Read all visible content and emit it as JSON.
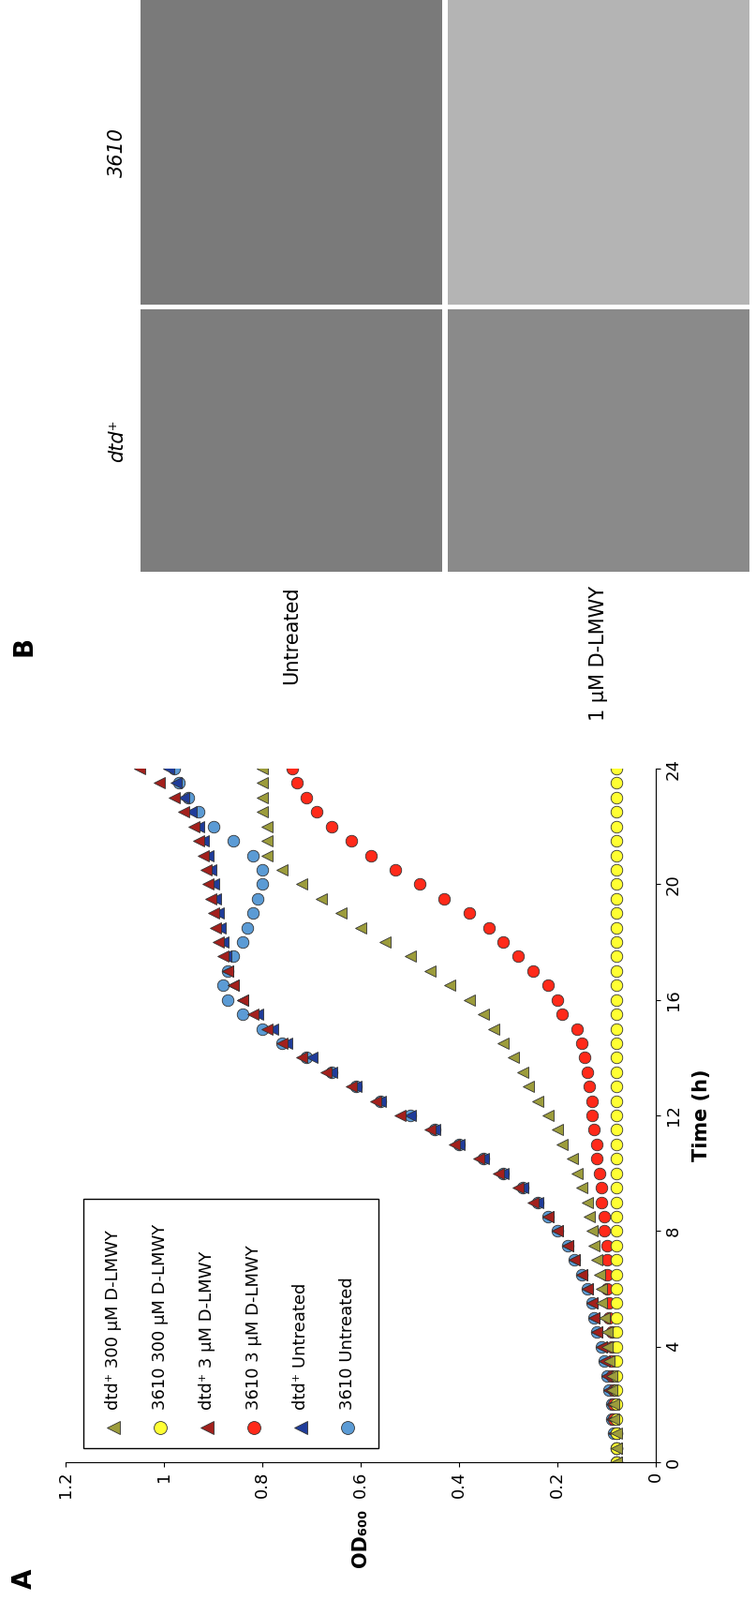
{
  "chart_data": {
    "type": "line",
    "xlabel": "Time (h)",
    "ylabel": "OD₆₀₀",
    "x": [
      0,
      0.5,
      1,
      1.5,
      2,
      2.5,
      3,
      3.5,
      4,
      4.5,
      5,
      5.5,
      6,
      6.5,
      7,
      7.5,
      8,
      8.5,
      9,
      9.5,
      10,
      10.5,
      11,
      11.5,
      12,
      12.5,
      13,
      13.5,
      14,
      14.5,
      15,
      15.5,
      16,
      16.5,
      17,
      17.5,
      18,
      18.5,
      19,
      19.5,
      20,
      20.5,
      21,
      21.5,
      22,
      22.5,
      23,
      23.5,
      24
    ],
    "xlim": [
      0,
      24
    ],
    "xticks": [
      0,
      4,
      8,
      12,
      16,
      20,
      24
    ],
    "ylim": [
      0,
      1.2
    ],
    "yticks": [
      0,
      0.2,
      0.4,
      0.6,
      0.8,
      1,
      1.2
    ],
    "grid": false,
    "legend": "upper left",
    "line_style": "none",
    "series": [
      {
        "name": "3610 Untreated",
        "color": "#5b9bd5",
        "marker": "circle",
        "values": [
          0.08,
          0.08,
          0.085,
          0.09,
          0.09,
          0.095,
          0.1,
          0.105,
          0.11,
          0.12,
          0.125,
          0.13,
          0.14,
          0.15,
          0.165,
          0.18,
          0.2,
          0.22,
          0.24,
          0.27,
          0.31,
          0.35,
          0.4,
          0.45,
          0.5,
          0.56,
          0.61,
          0.66,
          0.71,
          0.76,
          0.8,
          0.84,
          0.87,
          0.88,
          0.87,
          0.86,
          0.84,
          0.83,
          0.82,
          0.81,
          0.8,
          0.8,
          0.82,
          0.86,
          0.9,
          0.93,
          0.95,
          0.97,
          0.98
        ]
      },
      {
        "name": "dtd⁺ Untreated",
        "color": "#1f3c9a",
        "marker": "triangle",
        "values": [
          0.08,
          0.08,
          0.085,
          0.09,
          0.09,
          0.095,
          0.1,
          0.105,
          0.11,
          0.12,
          0.125,
          0.13,
          0.14,
          0.15,
          0.165,
          0.18,
          0.2,
          0.22,
          0.24,
          0.27,
          0.31,
          0.35,
          0.4,
          0.45,
          0.5,
          0.56,
          0.61,
          0.66,
          0.7,
          0.75,
          0.78,
          0.81,
          0.84,
          0.86,
          0.87,
          0.875,
          0.88,
          0.885,
          0.89,
          0.895,
          0.9,
          0.905,
          0.91,
          0.92,
          0.93,
          0.945,
          0.96,
          0.975,
          0.99
        ]
      },
      {
        "name": "3610 3 µM D-LMWY",
        "color": "#ff2a1a",
        "marker": "circle",
        "values": [
          0.08,
          0.08,
          0.08,
          0.085,
          0.085,
          0.085,
          0.09,
          0.09,
          0.09,
          0.09,
          0.095,
          0.095,
          0.1,
          0.1,
          0.1,
          0.1,
          0.105,
          0.105,
          0.11,
          0.11,
          0.115,
          0.12,
          0.12,
          0.125,
          0.13,
          0.13,
          0.135,
          0.14,
          0.145,
          0.15,
          0.16,
          0.19,
          0.2,
          0.22,
          0.25,
          0.28,
          0.31,
          0.34,
          0.38,
          0.43,
          0.48,
          0.53,
          0.58,
          0.62,
          0.66,
          0.69,
          0.71,
          0.73,
          0.74
        ]
      },
      {
        "name": "dtd⁺ 3 µM D-LMWY",
        "color": "#a3201c",
        "marker": "triangle",
        "values": [
          0.08,
          0.08,
          0.085,
          0.09,
          0.09,
          0.095,
          0.1,
          0.105,
          0.11,
          0.12,
          0.125,
          0.13,
          0.14,
          0.15,
          0.165,
          0.18,
          0.2,
          0.22,
          0.25,
          0.28,
          0.32,
          0.36,
          0.41,
          0.46,
          0.52,
          0.57,
          0.62,
          0.67,
          0.72,
          0.76,
          0.79,
          0.82,
          0.84,
          0.86,
          0.87,
          0.88,
          0.89,
          0.895,
          0.9,
          0.905,
          0.91,
          0.915,
          0.92,
          0.93,
          0.94,
          0.96,
          0.98,
          1.01,
          1.05
        ]
      },
      {
        "name": "3610 300 µM D-LMWY",
        "color": "#ffff33",
        "marker": "circle",
        "values": [
          0.08,
          0.08,
          0.08,
          0.08,
          0.08,
          0.08,
          0.08,
          0.08,
          0.08,
          0.08,
          0.08,
          0.08,
          0.08,
          0.08,
          0.08,
          0.08,
          0.08,
          0.08,
          0.08,
          0.08,
          0.08,
          0.08,
          0.08,
          0.08,
          0.08,
          0.08,
          0.08,
          0.08,
          0.08,
          0.08,
          0.08,
          0.08,
          0.08,
          0.08,
          0.08,
          0.08,
          0.08,
          0.08,
          0.08,
          0.08,
          0.08,
          0.08,
          0.08,
          0.08,
          0.08,
          0.08,
          0.08,
          0.08,
          0.08
        ]
      },
      {
        "name": "dtd⁺ 300 µM D-LMWY",
        "color": "#9c9c3c",
        "marker": "triangle",
        "values": [
          0.08,
          0.08,
          0.08,
          0.085,
          0.085,
          0.09,
          0.09,
          0.095,
          0.1,
          0.1,
          0.105,
          0.11,
          0.11,
          0.115,
          0.12,
          0.125,
          0.13,
          0.135,
          0.14,
          0.15,
          0.16,
          0.17,
          0.19,
          0.2,
          0.22,
          0.24,
          0.26,
          0.27,
          0.29,
          0.31,
          0.33,
          0.35,
          0.38,
          0.42,
          0.46,
          0.5,
          0.55,
          0.6,
          0.64,
          0.68,
          0.72,
          0.76,
          0.79,
          0.79,
          0.79,
          0.8,
          0.8,
          0.8,
          0.8
        ]
      }
    ]
  },
  "panel_labels": [
    "A",
    "B"
  ],
  "micrographs": {
    "columns": [
      "dtd⁺",
      "3610"
    ],
    "rows": [
      "Untreated",
      "1 µM D-LMWY"
    ]
  }
}
